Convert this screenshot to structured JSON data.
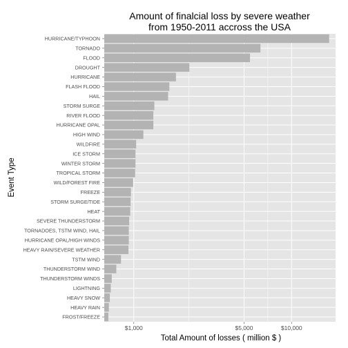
{
  "chart_data": {
    "type": "bar",
    "orientation": "horizontal",
    "title_lines": [
      "Amount of finalcial loss by severe weather",
      "from 1950-2011 accross the USA"
    ],
    "xlabel": "Total Amount of losses ( million $ )",
    "ylabel": "Event Type",
    "x_scale": "log",
    "xlim": [
      650,
      19000
    ],
    "x_ticks": [
      {
        "value": 1000,
        "label": "$1,000"
      },
      {
        "value": 5000,
        "label": "$5,000"
      },
      {
        "value": 10000,
        "label": "$10,000"
      }
    ],
    "grid": true,
    "colors": {
      "panel": "#e5e5e5",
      "grid": "#ffffff",
      "bar": "#b3b3b3"
    },
    "categories": [
      "HURRICANE/TYPHOON",
      "TORNADO",
      "FLOOD",
      "DROUGHT",
      "HURRICANE",
      "FLASH FLOOD",
      "HAIL",
      "STORM SURGE",
      "RIVER FLOOD",
      "HURRICANE OPAL",
      "HIGH WIND",
      "WILDFIRE",
      "ICE STORM",
      "WINTER STORM",
      "TROPICAL STORM",
      "WILD/FOREST FIRE",
      "FREEZE",
      "STORM SURGE/TIDE",
      "HEAT",
      "SEVERE THUNDERSTORM",
      "TORNADOES, TSTM WIND, HAIL",
      "HURRICANE OPAL/HIGH WINDS",
      "HEAVY RAIN/SEVERE WEATHER",
      "TSTM WIND",
      "THUNDERSTORM WIND",
      "THUNDERSTORM WINDS",
      "LIGHTNING",
      "HEAVY SNOW",
      "HEAVY RAIN",
      "FROST/FREEZE"
    ],
    "values": [
      17300,
      6350,
      5450,
      2250,
      1850,
      1680,
      1650,
      1350,
      1330,
      1330,
      1150,
      1035,
      1025,
      1025,
      1020,
      990,
      960,
      955,
      950,
      935,
      930,
      930,
      925,
      830,
      775,
      725,
      715,
      705,
      695,
      690
    ]
  }
}
